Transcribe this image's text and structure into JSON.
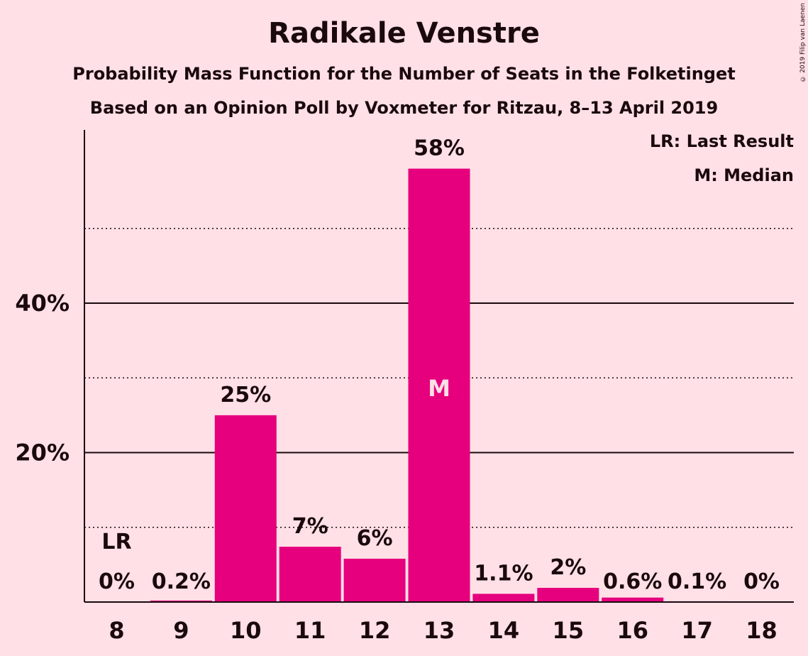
{
  "chart_data": {
    "type": "bar",
    "title": "Radikale Venstre",
    "subtitle": "Probability Mass Function for the Number of Seats in the Folketinget",
    "subtitle2": "Based on an Opinion Poll by Voxmeter for Ritzau, 8–13 April 2019",
    "copyright": "© 2019 Filip van Laenen",
    "categories": [
      "8",
      "9",
      "10",
      "11",
      "12",
      "13",
      "14",
      "15",
      "16",
      "17",
      "18"
    ],
    "values": [
      0,
      0.2,
      25,
      7.4,
      5.8,
      58,
      1.1,
      1.9,
      0.6,
      0.1,
      0
    ],
    "value_labels": [
      "0%",
      "0.2%",
      "25%",
      "7%",
      "6%",
      "58%",
      "1.1%",
      "2%",
      "0.6%",
      "0.1%",
      "0%"
    ],
    "ylim": [
      0,
      63
    ],
    "yticks": [
      20,
      40
    ],
    "ytick_labels": [
      "20%",
      "40%"
    ],
    "minor_grid": [
      10,
      30,
      50
    ],
    "last_result_index": 0,
    "last_result_label": "LR",
    "median_index": 5,
    "median_label": "M",
    "legend": [
      "LR: Last Result",
      "M: Median"
    ],
    "legend_position": "top-right",
    "bar_color": "#E6007E",
    "grid": true
  }
}
